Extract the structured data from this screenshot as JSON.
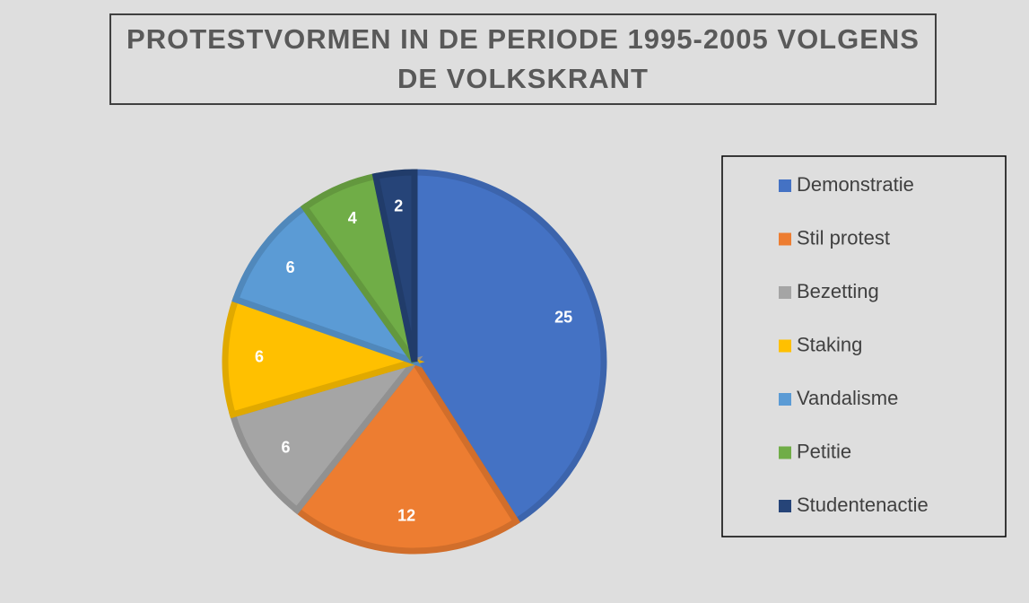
{
  "chart_data": {
    "type": "pie",
    "title": "PROTESTVORMEN IN DE PERIODE 1995-2005 VOLGENS DE VOLKSKRANT",
    "categories": [
      "Demonstratie",
      "Stil protest",
      "Bezetting",
      "Staking",
      "Vandalisme",
      "Petitie",
      "Studentenactie"
    ],
    "values": [
      25,
      12,
      6,
      6,
      6,
      4,
      2
    ],
    "colors": [
      "#4472c4",
      "#ed7d31",
      "#a5a5a5",
      "#ffc000",
      "#5b9bd5",
      "#70ad47",
      "#264478"
    ],
    "legend": "right"
  }
}
